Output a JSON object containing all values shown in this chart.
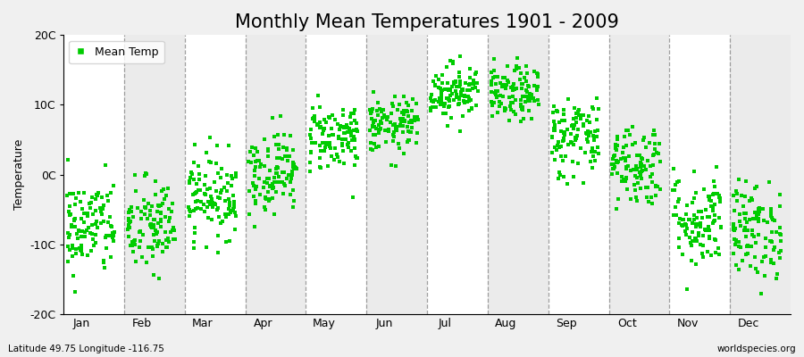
{
  "title": "Monthly Mean Temperatures 1901 - 2009",
  "ylabel": "Temperature",
  "subtitle_left": "Latitude 49.75 Longitude -116.75",
  "subtitle_right": "worldspecies.org",
  "ylim": [
    -20,
    20
  ],
  "ytick_labels": [
    "20C",
    "10C",
    "0C",
    "-10C",
    "-20C"
  ],
  "ytick_values": [
    20,
    10,
    0,
    -10,
    -20
  ],
  "months": [
    "Jan",
    "Feb",
    "Mar",
    "Apr",
    "May",
    "Jun",
    "Jul",
    "Aug",
    "Sep",
    "Oct",
    "Nov",
    "Dec"
  ],
  "legend_label": "Mean Temp",
  "dot_color": "#00CC00",
  "dot_size": 12,
  "bg_color": "#F0F0F0",
  "plot_bg_white": "#FFFFFF",
  "plot_bg_gray": "#EBEBEB",
  "monthly_means": [
    -7.5,
    -7.5,
    -3.0,
    0.5,
    5.5,
    7.0,
    12.0,
    11.5,
    5.5,
    1.5,
    -6.5,
    -8.0
  ],
  "monthly_spreads": [
    3.5,
    3.5,
    3.0,
    3.0,
    2.5,
    2.0,
    2.0,
    2.0,
    3.0,
    3.0,
    3.5,
    3.5
  ],
  "n_years": 109,
  "seed": 42,
  "title_fontsize": 15,
  "axis_fontsize": 9,
  "legend_fontsize": 9,
  "dashed_line_color": "#888888"
}
